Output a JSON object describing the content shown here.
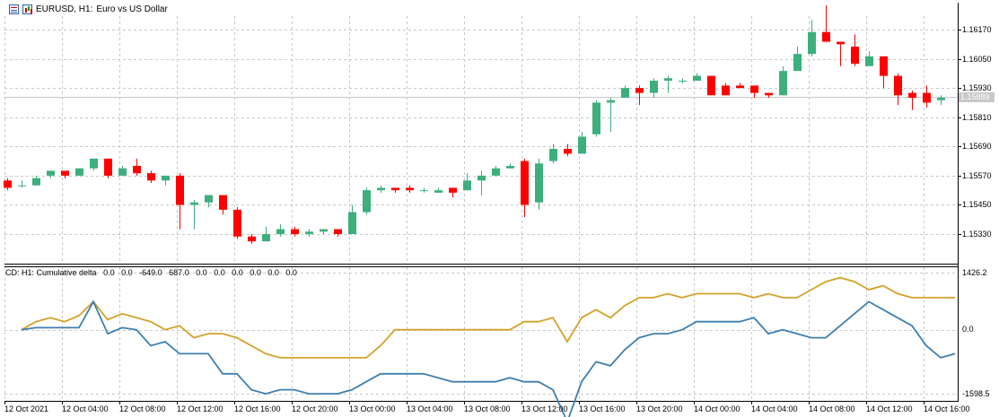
{
  "header": {
    "symbol": "EURUSD, H1:",
    "description": "Euro vs US Dollar"
  },
  "indicator": {
    "label": "CD: H1: Cumulative delta",
    "values": [
      "0.0",
      "0.0",
      "-649.0",
      "687.0",
      "0.0",
      "0.0",
      "0.0",
      "0.0",
      "0.0",
      "0.0"
    ]
  },
  "price_axis": [
    "1.16170",
    "1.16050",
    "1.15930",
    "1.15810",
    "1.15690",
    "1.15570",
    "1.15450",
    "1.15330"
  ],
  "current_price": "1.15889",
  "indicator_axis": [
    "1426.2",
    "0.0",
    "-1598.5"
  ],
  "time_axis": [
    "12 Oct 2021",
    "12 Oct 04:00",
    "12 Oct 08:00",
    "12 Oct 12:00",
    "12 Oct 16:00",
    "12 Oct 20:00",
    "13 Oct 00:00",
    "13 Oct 04:00",
    "13 Oct 08:00",
    "13 Oct 12:00",
    "13 Oct 16:00",
    "13 Oct 20:00",
    "14 Oct 00:00",
    "14 Oct 04:00",
    "14 Oct 08:00",
    "14 Oct 12:00",
    "14 Oct 16:00"
  ],
  "colors": {
    "bull": "#3daf7c",
    "bear": "#ff0000",
    "delta_line": "#d4a12a",
    "cum_line": "#3e7fb0",
    "grid": "#c8c8c8"
  },
  "chart_data": [
    {
      "type": "candlestick",
      "title": "EURUSD, H1: Euro vs US Dollar",
      "ylim": [
        1.1525,
        1.1625
      ],
      "candles": [
        {
          "o": 1.1555,
          "h": 1.1556,
          "l": 1.1551,
          "c": 1.1552
        },
        {
          "o": 1.1553,
          "h": 1.1555,
          "l": 1.1552,
          "c": 1.1553
        },
        {
          "o": 1.1553,
          "h": 1.1557,
          "l": 1.1553,
          "c": 1.1556
        },
        {
          "o": 1.1557,
          "h": 1.1559,
          "l": 1.1556,
          "c": 1.1559
        },
        {
          "o": 1.1559,
          "h": 1.1559,
          "l": 1.1556,
          "c": 1.1557
        },
        {
          "o": 1.1557,
          "h": 1.156,
          "l": 1.1557,
          "c": 1.156
        },
        {
          "o": 1.156,
          "h": 1.1564,
          "l": 1.1559,
          "c": 1.1564
        },
        {
          "o": 1.1564,
          "h": 1.1564,
          "l": 1.1556,
          "c": 1.1557
        },
        {
          "o": 1.1557,
          "h": 1.1561,
          "l": 1.1557,
          "c": 1.156
        },
        {
          "o": 1.1561,
          "h": 1.1564,
          "l": 1.1557,
          "c": 1.1558
        },
        {
          "o": 1.1558,
          "h": 1.1559,
          "l": 1.1554,
          "c": 1.1555
        },
        {
          "o": 1.1555,
          "h": 1.1557,
          "l": 1.1553,
          "c": 1.1557
        },
        {
          "o": 1.1557,
          "h": 1.1558,
          "l": 1.1535,
          "c": 1.1545
        },
        {
          "o": 1.1545,
          "h": 1.1547,
          "l": 1.1535,
          "c": 1.1546
        },
        {
          "o": 1.1546,
          "h": 1.1549,
          "l": 1.1544,
          "c": 1.1549
        },
        {
          "o": 1.1549,
          "h": 1.1549,
          "l": 1.1541,
          "c": 1.1543
        },
        {
          "o": 1.1543,
          "h": 1.1544,
          "l": 1.1531,
          "c": 1.1532
        },
        {
          "o": 1.1532,
          "h": 1.1533,
          "l": 1.1529,
          "c": 1.153
        },
        {
          "o": 1.153,
          "h": 1.1536,
          "l": 1.153,
          "c": 1.1533
        },
        {
          "o": 1.1533,
          "h": 1.1537,
          "l": 1.1532,
          "c": 1.1535
        },
        {
          "o": 1.1535,
          "h": 1.1536,
          "l": 1.1532,
          "c": 1.1533
        },
        {
          "o": 1.1533,
          "h": 1.1535,
          "l": 1.1532,
          "c": 1.1534
        },
        {
          "o": 1.1534,
          "h": 1.1535,
          "l": 1.1533,
          "c": 1.1535
        },
        {
          "o": 1.1535,
          "h": 1.1535,
          "l": 1.1532,
          "c": 1.1533
        },
        {
          "o": 1.1533,
          "h": 1.1545,
          "l": 1.1533,
          "c": 1.1542
        },
        {
          "o": 1.1542,
          "h": 1.1552,
          "l": 1.1541,
          "c": 1.1551
        },
        {
          "o": 1.1551,
          "h": 1.1553,
          "l": 1.155,
          "c": 1.1552
        },
        {
          "o": 1.1552,
          "h": 1.1552,
          "l": 1.155,
          "c": 1.1551
        },
        {
          "o": 1.1552,
          "h": 1.1553,
          "l": 1.155,
          "c": 1.1551
        },
        {
          "o": 1.1551,
          "h": 1.1552,
          "l": 1.155,
          "c": 1.1551
        },
        {
          "o": 1.155,
          "h": 1.1552,
          "l": 1.155,
          "c": 1.1551
        },
        {
          "o": 1.1552,
          "h": 1.1552,
          "l": 1.1548,
          "c": 1.155
        },
        {
          "o": 1.1551,
          "h": 1.1558,
          "l": 1.1551,
          "c": 1.1555
        },
        {
          "o": 1.1555,
          "h": 1.1559,
          "l": 1.1549,
          "c": 1.1557
        },
        {
          "o": 1.1557,
          "h": 1.1561,
          "l": 1.1557,
          "c": 1.156
        },
        {
          "o": 1.156,
          "h": 1.1562,
          "l": 1.156,
          "c": 1.1561
        },
        {
          "o": 1.1563,
          "h": 1.1564,
          "l": 1.154,
          "c": 1.1545
        },
        {
          "o": 1.1546,
          "h": 1.1564,
          "l": 1.1543,
          "c": 1.1562
        },
        {
          "o": 1.1563,
          "h": 1.157,
          "l": 1.1562,
          "c": 1.1568
        },
        {
          "o": 1.1568,
          "h": 1.157,
          "l": 1.1565,
          "c": 1.1566
        },
        {
          "o": 1.1566,
          "h": 1.1575,
          "l": 1.1566,
          "c": 1.1573
        },
        {
          "o": 1.1574,
          "h": 1.1588,
          "l": 1.1573,
          "c": 1.1587
        },
        {
          "o": 1.1587,
          "h": 1.1589,
          "l": 1.1575,
          "c": 1.1588
        },
        {
          "o": 1.1589,
          "h": 1.1594,
          "l": 1.1589,
          "c": 1.1593
        },
        {
          "o": 1.1593,
          "h": 1.1594,
          "l": 1.1586,
          "c": 1.1591
        },
        {
          "o": 1.1591,
          "h": 1.1597,
          "l": 1.1589,
          "c": 1.1596
        },
        {
          "o": 1.1596,
          "h": 1.1598,
          "l": 1.1591,
          "c": 1.1597
        },
        {
          "o": 1.1596,
          "h": 1.1597,
          "l": 1.1595,
          "c": 1.1596
        },
        {
          "o": 1.1596,
          "h": 1.1599,
          "l": 1.1596,
          "c": 1.1598
        },
        {
          "o": 1.1598,
          "h": 1.1598,
          "l": 1.159,
          "c": 1.159
        },
        {
          "o": 1.1594,
          "h": 1.1595,
          "l": 1.159,
          "c": 1.159
        },
        {
          "o": 1.1594,
          "h": 1.1595,
          "l": 1.1593,
          "c": 1.1593
        },
        {
          "o": 1.1594,
          "h": 1.1594,
          "l": 1.1589,
          "c": 1.1591
        },
        {
          "o": 1.1591,
          "h": 1.1591,
          "l": 1.1589,
          "c": 1.159
        },
        {
          "o": 1.159,
          "h": 1.1602,
          "l": 1.159,
          "c": 1.16
        },
        {
          "o": 1.16,
          "h": 1.161,
          "l": 1.16,
          "c": 1.1607
        },
        {
          "o": 1.1607,
          "h": 1.1621,
          "l": 1.1606,
          "c": 1.1616
        },
        {
          "o": 1.1616,
          "h": 1.1627,
          "l": 1.1612,
          "c": 1.1612
        },
        {
          "o": 1.1612,
          "h": 1.1612,
          "l": 1.1602,
          "c": 1.1611
        },
        {
          "o": 1.161,
          "h": 1.1615,
          "l": 1.1602,
          "c": 1.1603
        },
        {
          "o": 1.1602,
          "h": 1.1608,
          "l": 1.1602,
          "c": 1.1606
        },
        {
          "o": 1.1606,
          "h": 1.1606,
          "l": 1.1593,
          "c": 1.1598
        },
        {
          "o": 1.1598,
          "h": 1.1599,
          "l": 1.1586,
          "c": 1.159
        },
        {
          "o": 1.1591,
          "h": 1.1592,
          "l": 1.1584,
          "c": 1.1589
        },
        {
          "o": 1.1591,
          "h": 1.1594,
          "l": 1.1585,
          "c": 1.1587
        },
        {
          "o": 1.1588,
          "h": 1.159,
          "l": 1.1586,
          "c": 1.1589
        }
      ]
    },
    {
      "type": "line",
      "title": "CD: H1: Cumulative delta",
      "ylim": [
        -1598.5,
        1426.2
      ],
      "series": [
        {
          "values": [
            0,
            200,
            300,
            200,
            350,
            700,
            250,
            400,
            300,
            200,
            0,
            100,
            -200,
            -100,
            -100,
            -200,
            -400,
            -600,
            -700,
            -700,
            -700,
            -700,
            -700,
            -700,
            -700,
            -400,
            0,
            0,
            0,
            0,
            0,
            0,
            0,
            0,
            0,
            200,
            200,
            300,
            -300,
            300,
            500,
            300,
            600,
            800,
            800,
            900,
            800,
            900,
            900,
            900,
            900,
            800,
            900,
            800,
            800,
            1000,
            1200,
            1300,
            1200,
            1000,
            1100,
            900,
            800,
            800,
            800,
            800
          ]
        },
        {
          "values": [
            0,
            50,
            50,
            50,
            50,
            700,
            -100,
            50,
            0,
            -400,
            -300,
            -600,
            -600,
            -600,
            -1100,
            -1100,
            -1500,
            -1600,
            -1500,
            -1500,
            -1600,
            -1600,
            -1600,
            -1500,
            -1300,
            -1100,
            -1100,
            -1100,
            -1100,
            -1200,
            -1300,
            -1300,
            -1300,
            -1300,
            -1200,
            -1300,
            -1300,
            -1500,
            -2300,
            -1300,
            -800,
            -900,
            -500,
            -200,
            -100,
            -100,
            0,
            200,
            200,
            200,
            200,
            300,
            -100,
            0,
            -100,
            -200,
            -200,
            100,
            400,
            700,
            500,
            300,
            100,
            -400,
            -700,
            -600
          ]
        }
      ]
    }
  ]
}
